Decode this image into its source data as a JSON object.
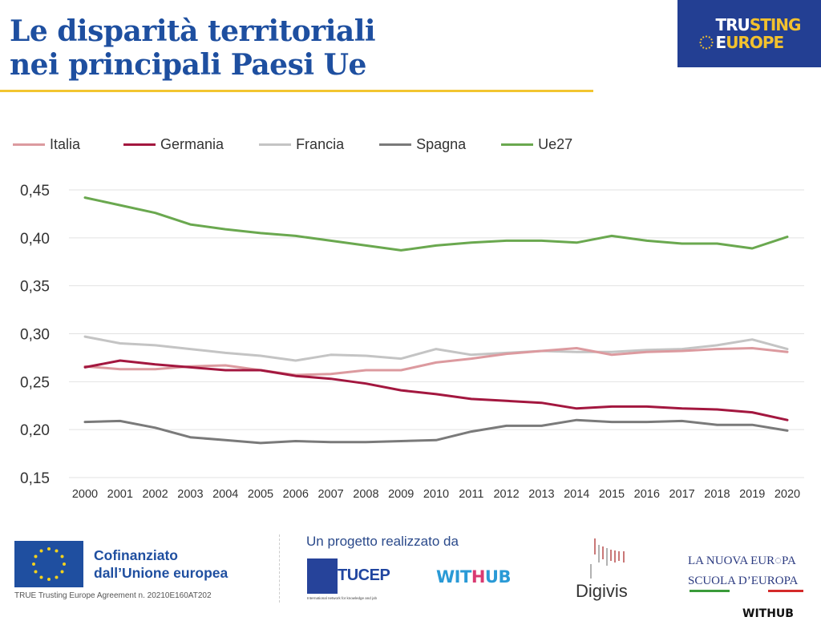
{
  "header": {
    "title_line1": "Le disparità territoriali",
    "title_line2": "nei principali Paesi Ue",
    "brand": {
      "line1_white": "TRU",
      "line1_yellow": "STING",
      "line2_white": "E",
      "line2_yellow": "UROPE"
    },
    "accent_color": "#f2c530",
    "title_color": "#1e4fa0"
  },
  "chart_data": {
    "type": "line",
    "title": "Le disparità territoriali nei principali Paesi Ue",
    "xlabel": "",
    "ylabel": "",
    "ylim": [
      0.15,
      0.45
    ],
    "yticks": [
      "0,45",
      "0,40",
      "0,35",
      "0,30",
      "0,25",
      "0,20",
      "0,15"
    ],
    "ytick_values": [
      0.45,
      0.4,
      0.35,
      0.3,
      0.25,
      0.2,
      0.15
    ],
    "grid": true,
    "legend_position": "top-left",
    "x": [
      "2000",
      "2001",
      "2002",
      "2003",
      "2004",
      "2005",
      "2006",
      "2007",
      "2008",
      "2009",
      "2010",
      "2011",
      "2012",
      "2013",
      "2014",
      "2015",
      "2016",
      "2017",
      "2018",
      "2019",
      "2020"
    ],
    "series": [
      {
        "name": "Italia",
        "color": "#dc9a9f",
        "values": [
          0.266,
          0.263,
          0.263,
          0.266,
          0.267,
          0.262,
          0.257,
          0.258,
          0.262,
          0.262,
          0.27,
          0.274,
          0.279,
          0.282,
          0.285,
          0.278,
          0.281,
          0.282,
          0.284,
          0.285,
          0.281
        ]
      },
      {
        "name": "Germania",
        "color": "#a3173f",
        "values": [
          0.265,
          0.272,
          0.268,
          0.265,
          0.262,
          0.262,
          0.256,
          0.253,
          0.248,
          0.241,
          0.237,
          0.232,
          0.23,
          0.228,
          0.222,
          0.224,
          0.224,
          0.222,
          0.221,
          0.218,
          0.21
        ]
      },
      {
        "name": "Francia",
        "color": "#c4c4c4",
        "values": [
          0.297,
          0.29,
          0.288,
          0.284,
          0.28,
          0.277,
          0.272,
          0.278,
          0.277,
          0.274,
          0.284,
          0.278,
          0.28,
          0.282,
          0.281,
          0.281,
          0.283,
          0.284,
          0.288,
          0.294,
          0.284
        ]
      },
      {
        "name": "Spagna",
        "color": "#7a7a7a",
        "values": [
          0.208,
          0.209,
          0.202,
          0.192,
          0.189,
          0.186,
          0.188,
          0.187,
          0.187,
          0.188,
          0.189,
          0.198,
          0.204,
          0.204,
          0.21,
          0.208,
          0.208,
          0.209,
          0.205,
          0.205,
          0.199
        ]
      },
      {
        "name": "Ue27",
        "color": "#6aa84f",
        "values": [
          0.442,
          0.434,
          0.426,
          0.414,
          0.409,
          0.405,
          0.402,
          0.397,
          0.392,
          0.387,
          0.392,
          0.395,
          0.397,
          0.397,
          0.395,
          0.402,
          0.397,
          0.394,
          0.394,
          0.389,
          0.401
        ]
      }
    ]
  },
  "footer": {
    "eu_line1": "Cofinanziato",
    "eu_line2": "dall’Unione europea",
    "agreement": "TRUE Trusting Europe Agreement n. 20210E160AT202",
    "project_label": "Un progetto realizzato da",
    "tucep": "TUCEP",
    "tucep_sub": "International network for knowledge and job",
    "withhub": {
      "a": "WIT",
      "b": "H",
      "c": "UB"
    },
    "digivis": "Digivis",
    "lne_line1": "LA NUOVA EUR◌PA",
    "lne_line2": "SCUOLA D’EUROPA",
    "withhub_black": "WITHUB"
  }
}
